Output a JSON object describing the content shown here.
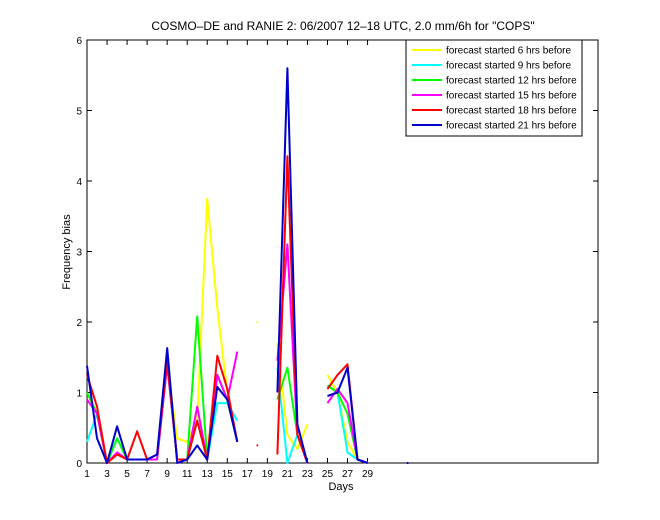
{
  "chart_data": {
    "type": "line",
    "title": "COSMO–DE and RANIE 2: 06/2007 12–18 UTC, 2.0 mm/6h for \"COPS\"",
    "xlabel": "Days",
    "ylabel": "Frequency bias",
    "xlim": [
      1,
      52
    ],
    "ylim": [
      0,
      6
    ],
    "xticks": [
      1,
      3,
      5,
      7,
      9,
      11,
      13,
      15,
      17,
      19,
      21,
      23,
      25,
      27,
      29
    ],
    "yticks": [
      0,
      1,
      2,
      3,
      4,
      5,
      6
    ],
    "grid": false,
    "legend_position": "top-right",
    "x": [
      1,
      2,
      3,
      4,
      5,
      6,
      7,
      8,
      9,
      10,
      11,
      12,
      13,
      14,
      15,
      16,
      17,
      18,
      19,
      20,
      21,
      22,
      23,
      24,
      25,
      26,
      27,
      28,
      29,
      30,
      31,
      32,
      33
    ],
    "series": [
      {
        "name": "forecast started 6 hrs before",
        "color": "#ffff00",
        "values": [
          1.0,
          0.7,
          0.0,
          0.12,
          0.05,
          0.05,
          0.05,
          0.05,
          1.4,
          0.35,
          0.3,
          0.6,
          3.75,
          2.2,
          1.0,
          null,
          null,
          2.0,
          null,
          1.7,
          0.4,
          0.2,
          0.55,
          null,
          1.25,
          1.0,
          0.3,
          0.05,
          0.0,
          null,
          null,
          null,
          null
        ]
      },
      {
        "name": "forecast started 9 hrs before",
        "color": "#00ffff",
        "values": [
          0.3,
          0.7,
          0.0,
          0.35,
          0.05,
          0.05,
          0.05,
          0.05,
          1.4,
          0.05,
          0.05,
          0.6,
          0.05,
          0.85,
          0.85,
          0.6,
          null,
          null,
          null,
          1.35,
          0.0,
          0.4,
          0.0,
          null,
          1.1,
          1.0,
          0.15,
          0.05,
          0.0,
          null,
          null,
          null,
          null
        ]
      },
      {
        "name": "forecast started 12 hrs before",
        "color": "#00ff00",
        "values": [
          1.0,
          0.7,
          0.0,
          0.35,
          0.05,
          0.05,
          0.05,
          0.05,
          1.4,
          0.05,
          0.05,
          2.08,
          0.05,
          1.25,
          0.9,
          0.3,
          null,
          null,
          null,
          0.9,
          1.35,
          0.4,
          0.0,
          null,
          1.1,
          1.0,
          0.7,
          0.05,
          0.0,
          null,
          null,
          null,
          null
        ]
      },
      {
        "name": "forecast started 15 hrs before",
        "color": "#ff00ff",
        "values": [
          0.9,
          0.7,
          0.0,
          0.15,
          0.05,
          0.05,
          0.05,
          0.05,
          1.4,
          0.05,
          0.05,
          0.8,
          0.05,
          1.25,
          0.9,
          1.58,
          null,
          null,
          null,
          1.45,
          3.1,
          0.4,
          0.0,
          null,
          0.85,
          1.05,
          0.85,
          0.05,
          0.0,
          null,
          null,
          null,
          null
        ]
      },
      {
        "name": "forecast started 18 hrs before",
        "color": "#ff0000",
        "values": [
          1.25,
          0.8,
          0.0,
          0.12,
          0.05,
          0.45,
          0.05,
          0.12,
          1.45,
          0.05,
          0.05,
          0.6,
          0.05,
          1.52,
          1.05,
          0.3,
          null,
          0.25,
          null,
          0.12,
          4.35,
          0.4,
          0.0,
          null,
          1.05,
          1.25,
          1.4,
          0.05,
          0.0,
          null,
          null,
          null,
          null
        ]
      },
      {
        "name": "forecast started 21 hrs before",
        "color": "#0000cc",
        "values": [
          1.38,
          0.35,
          0.0,
          0.52,
          0.05,
          0.05,
          0.05,
          0.12,
          1.63,
          0.0,
          0.05,
          0.25,
          0.05,
          1.08,
          0.9,
          0.3,
          null,
          null,
          null,
          1.0,
          5.6,
          0.55,
          0.0,
          null,
          0.95,
          1.0,
          1.35,
          0.05,
          0.0,
          null,
          null,
          null,
          0.0
        ]
      }
    ]
  }
}
